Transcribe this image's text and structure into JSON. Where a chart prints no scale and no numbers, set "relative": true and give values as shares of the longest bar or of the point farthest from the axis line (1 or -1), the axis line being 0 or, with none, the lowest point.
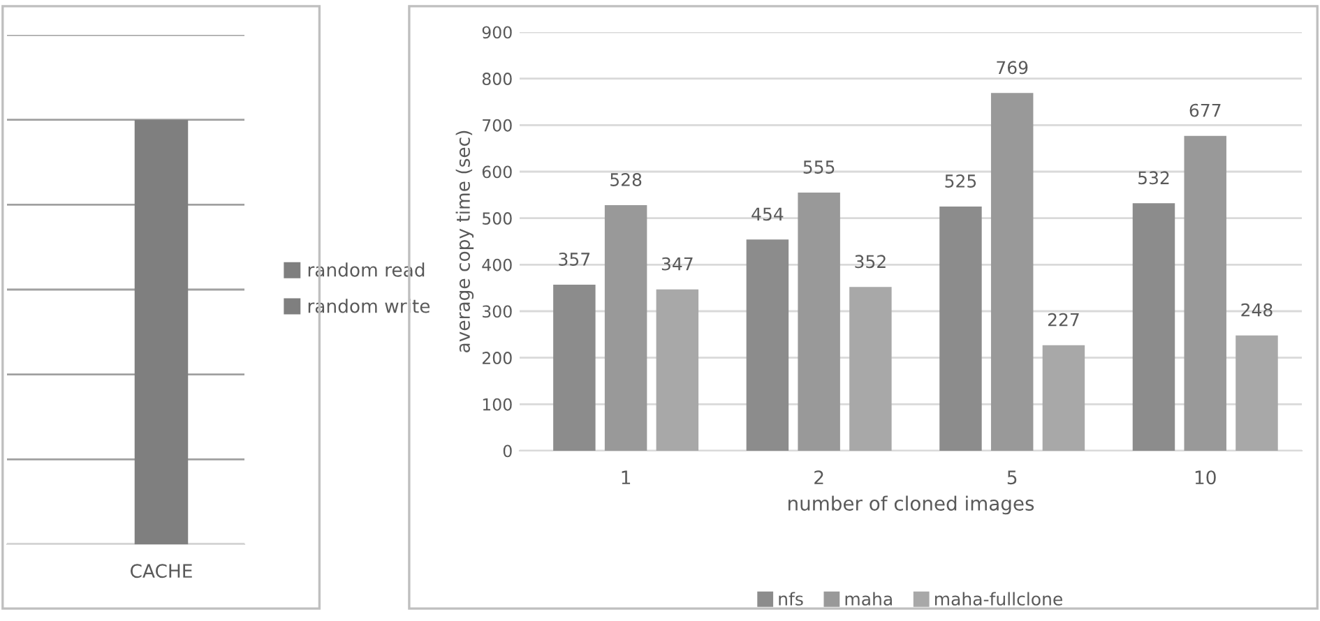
{
  "chart_data": [
    {
      "type": "bar",
      "relative": true,
      "categories": [
        "CACHE"
      ],
      "series": [
        {
          "name": "random read",
          "color": "#7f7f7f",
          "values": [
            null
          ]
        },
        {
          "name": "random write",
          "color": "#7f7f7f",
          "values": [
            1
          ]
        }
      ],
      "grid": "y",
      "legend": "right"
    },
    {
      "type": "bar",
      "xlabel": "number of cloned images",
      "ylabel": "average copy time (sec)",
      "categories": [
        "1",
        "2",
        "5",
        "10"
      ],
      "series": [
        {
          "name": "nfs",
          "color": "#8c8c8c",
          "values": [
            357,
            454,
            525,
            532
          ]
        },
        {
          "name": "maha",
          "color": "#999999",
          "values": [
            528,
            555,
            769,
            677
          ]
        },
        {
          "name": "maha-fullclone",
          "color": "#a8a8a8",
          "values": [
            347,
            352,
            227,
            248
          ]
        }
      ],
      "ylim": [
        0,
        900
      ],
      "yticks": [
        0,
        100,
        200,
        300,
        400,
        500,
        600,
        700,
        800,
        900
      ],
      "grid": "y",
      "data_labels": true,
      "legend": "bottom"
    }
  ]
}
